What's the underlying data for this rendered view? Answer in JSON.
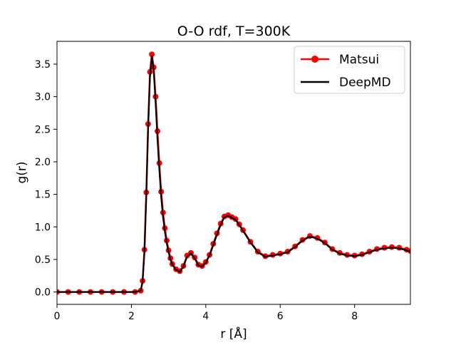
{
  "chart_data": {
    "type": "line",
    "title": "O-O rdf, T=300K",
    "xlabel": "r [Å]",
    "ylabel": "g(r)",
    "xlim": [
      0,
      9.5
    ],
    "ylim": [
      -0.19,
      3.85
    ],
    "xticks": [
      0,
      2,
      4,
      6,
      8
    ],
    "xtick_labels": [
      "0",
      "2",
      "4",
      "6",
      "8"
    ],
    "yticks": [
      0.0,
      0.5,
      1.0,
      1.5,
      2.0,
      2.5,
      3.0,
      3.5
    ],
    "ytick_labels": [
      "0.0",
      "0.5",
      "1.0",
      "1.5",
      "2.0",
      "2.5",
      "3.0",
      "3.5"
    ],
    "grid": false,
    "legend_position": "top-right",
    "series": [
      {
        "name": "Matsui",
        "color": "#ff0000",
        "style": "line-with-circle-markers",
        "x": [
          0.0,
          0.3,
          0.6,
          0.9,
          1.2,
          1.5,
          1.8,
          2.1,
          2.25,
          2.3,
          2.35,
          2.4,
          2.45,
          2.5,
          2.55,
          2.6,
          2.65,
          2.7,
          2.75,
          2.8,
          2.85,
          2.9,
          2.95,
          3.0,
          3.05,
          3.1,
          3.2,
          3.3,
          3.4,
          3.5,
          3.6,
          3.7,
          3.8,
          3.9,
          4.0,
          4.1,
          4.2,
          4.3,
          4.4,
          4.5,
          4.6,
          4.7,
          4.8,
          4.9,
          5.0,
          5.2,
          5.4,
          5.6,
          5.8,
          6.0,
          6.2,
          6.4,
          6.6,
          6.8,
          7.0,
          7.2,
          7.4,
          7.6,
          7.8,
          8.0,
          8.2,
          8.4,
          8.6,
          8.8,
          9.0,
          9.2,
          9.4,
          9.5
        ],
        "y": [
          0.0,
          0.0,
          0.0,
          0.0,
          0.0,
          0.0,
          0.0,
          0.0,
          0.02,
          0.17,
          0.65,
          1.53,
          2.58,
          3.38,
          3.65,
          3.45,
          3.0,
          2.47,
          1.98,
          1.54,
          1.22,
          0.98,
          0.79,
          0.64,
          0.52,
          0.43,
          0.35,
          0.32,
          0.4,
          0.56,
          0.6,
          0.53,
          0.42,
          0.4,
          0.46,
          0.57,
          0.74,
          0.9,
          1.05,
          1.16,
          1.18,
          1.15,
          1.12,
          1.04,
          0.95,
          0.77,
          0.62,
          0.55,
          0.57,
          0.59,
          0.62,
          0.7,
          0.8,
          0.86,
          0.83,
          0.76,
          0.66,
          0.6,
          0.57,
          0.56,
          0.58,
          0.62,
          0.66,
          0.68,
          0.69,
          0.68,
          0.65,
          0.63
        ]
      },
      {
        "name": "DeepMD",
        "color": "#000000",
        "style": "line",
        "x": [
          0.0,
          0.3,
          0.6,
          0.9,
          1.2,
          1.5,
          1.8,
          2.1,
          2.25,
          2.3,
          2.35,
          2.4,
          2.45,
          2.5,
          2.55,
          2.6,
          2.65,
          2.7,
          2.75,
          2.8,
          2.85,
          2.9,
          2.95,
          3.0,
          3.05,
          3.1,
          3.2,
          3.3,
          3.4,
          3.5,
          3.6,
          3.7,
          3.8,
          3.9,
          4.0,
          4.1,
          4.2,
          4.3,
          4.4,
          4.5,
          4.6,
          4.7,
          4.8,
          4.9,
          5.0,
          5.2,
          5.4,
          5.6,
          5.8,
          6.0,
          6.2,
          6.4,
          6.6,
          6.8,
          7.0,
          7.2,
          7.4,
          7.6,
          7.8,
          8.0,
          8.2,
          8.4,
          8.6,
          8.8,
          9.0,
          9.2,
          9.4,
          9.5
        ],
        "y": [
          0.0,
          0.0,
          0.0,
          0.0,
          0.0,
          0.0,
          0.0,
          0.0,
          0.02,
          0.15,
          0.6,
          1.45,
          2.5,
          3.3,
          3.62,
          3.4,
          2.9,
          2.35,
          1.88,
          1.46,
          1.15,
          0.93,
          0.75,
          0.61,
          0.5,
          0.42,
          0.34,
          0.31,
          0.39,
          0.55,
          0.59,
          0.52,
          0.41,
          0.39,
          0.45,
          0.56,
          0.72,
          0.88,
          1.03,
          1.15,
          1.17,
          1.14,
          1.11,
          1.03,
          0.94,
          0.76,
          0.61,
          0.54,
          0.56,
          0.58,
          0.61,
          0.69,
          0.79,
          0.85,
          0.82,
          0.75,
          0.65,
          0.59,
          0.56,
          0.55,
          0.57,
          0.61,
          0.65,
          0.67,
          0.68,
          0.67,
          0.64,
          0.62
        ]
      }
    ]
  }
}
